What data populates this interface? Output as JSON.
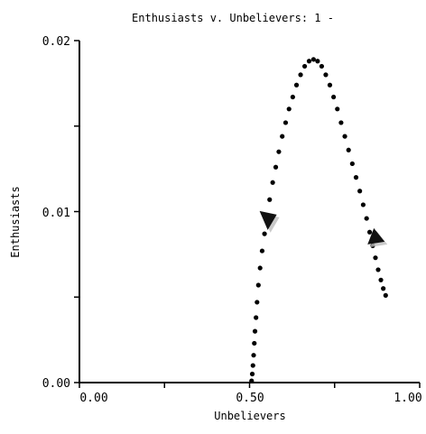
{
  "chart_data": {
    "type": "scatter",
    "title": "Enthusiasts v. Unbelievers: 1 -",
    "xlabel": "Unbelievers",
    "ylabel": "Enthusiasts",
    "xlim": [
      0,
      1
    ],
    "ylim": [
      0,
      0.02
    ],
    "x_ticks": [
      "0.00",
      "0.50",
      "1.00"
    ],
    "y_ticks": [
      "0.00",
      "0.01",
      "0.02"
    ],
    "grid": false,
    "legend": "none",
    "marker_color": "#000000",
    "arrow_color": "#111111",
    "series": [
      {
        "x": [
          0.506,
          0.508,
          0.51,
          0.512,
          0.514,
          0.516,
          0.519,
          0.522,
          0.526,
          0.531,
          0.537,
          0.544,
          0.551,
          0.559,
          0.568,
          0.577,
          0.586,
          0.596,
          0.606,
          0.616,
          0.627,
          0.638,
          0.65,
          0.662,
          0.675,
          0.688,
          0.7,
          0.712,
          0.724,
          0.736,
          0.747,
          0.758,
          0.769,
          0.78,
          0.791,
          0.802,
          0.813,
          0.824,
          0.834,
          0.844,
          0.853,
          0.862,
          0.87,
          0.878,
          0.886,
          0.893,
          0.9
        ],
        "y": [
          0.0001,
          0.0005,
          0.001,
          0.0016,
          0.0023,
          0.003,
          0.0038,
          0.0047,
          0.0057,
          0.0067,
          0.0077,
          0.0087,
          0.0097,
          0.0107,
          0.0117,
          0.0126,
          0.0135,
          0.0144,
          0.0152,
          0.016,
          0.0167,
          0.0174,
          0.018,
          0.0185,
          0.0188,
          0.0189,
          0.0188,
          0.0185,
          0.018,
          0.0174,
          0.0167,
          0.016,
          0.0152,
          0.0144,
          0.0136,
          0.0128,
          0.012,
          0.0112,
          0.0104,
          0.0096,
          0.0088,
          0.008,
          0.0073,
          0.0066,
          0.006,
          0.0055,
          0.0051
        ]
      }
    ],
    "direction_arrows": [
      {
        "x": 0.556,
        "y": 0.0094,
        "direction": "down"
      },
      {
        "x": 0.868,
        "y": 0.0085,
        "direction": "up"
      }
    ]
  }
}
